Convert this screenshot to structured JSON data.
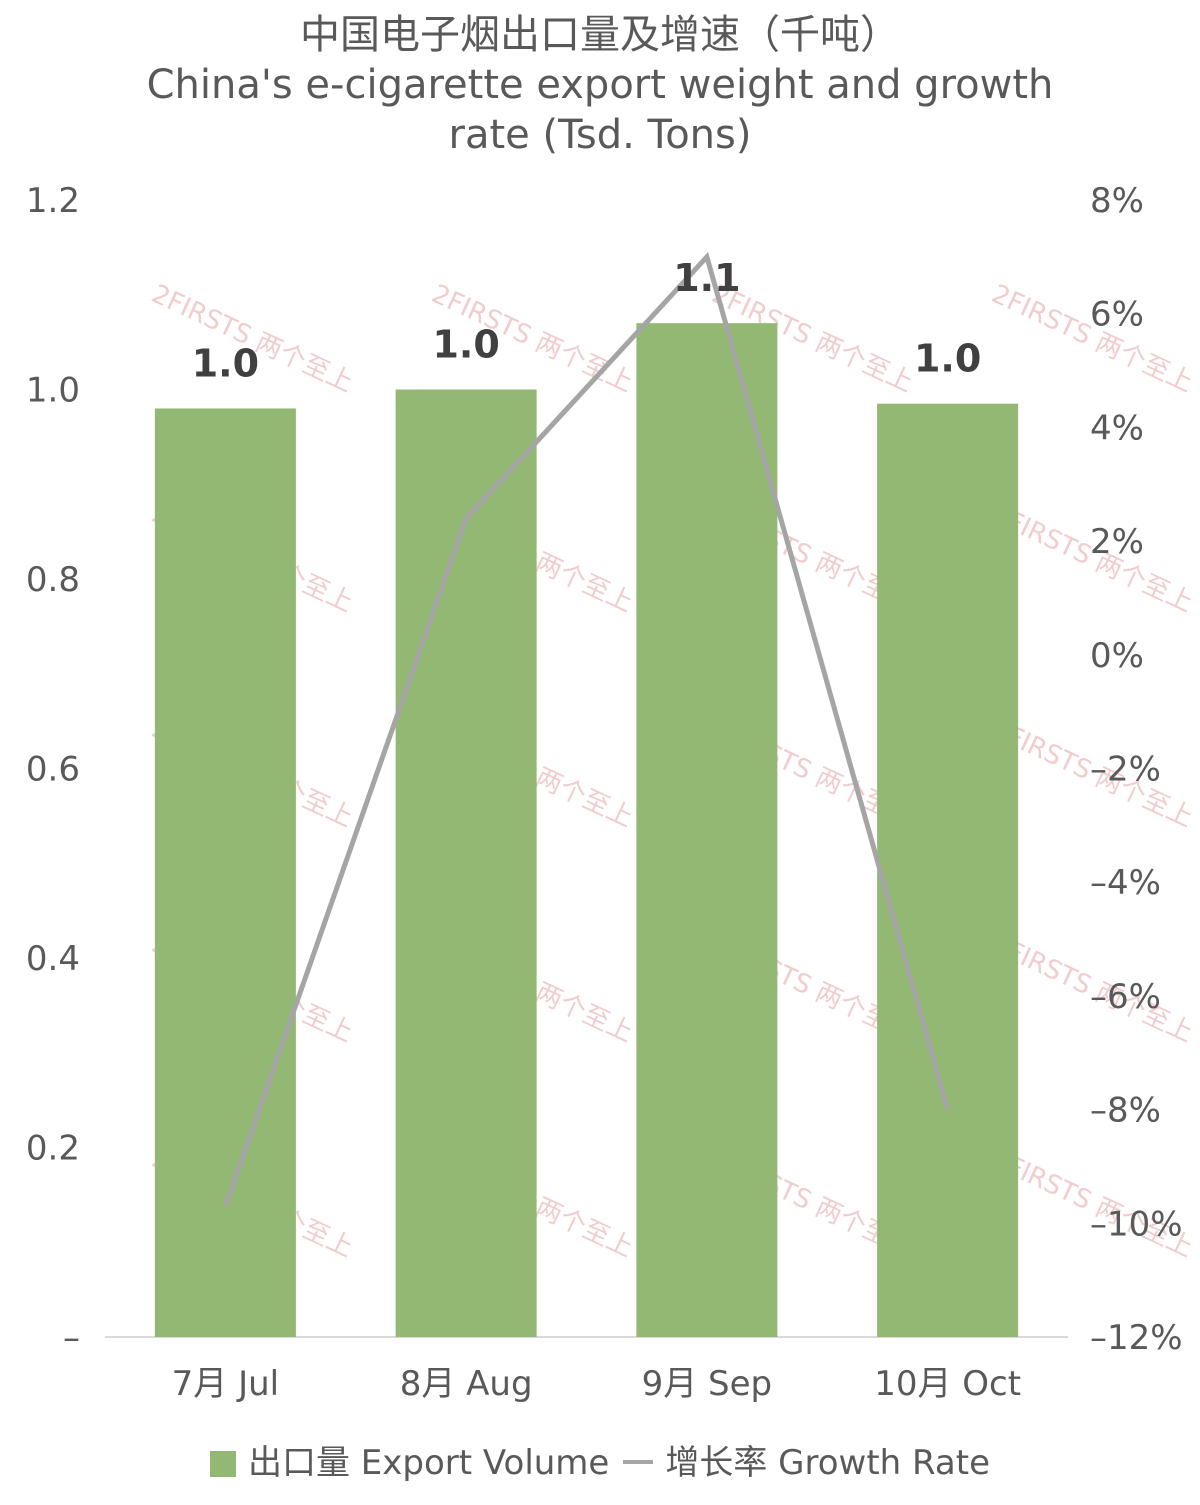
{
  "title": {
    "zh": "中国电子烟出口量及增速（千吨）",
    "en_line1": "China's e-cigarette export weight and growth",
    "en_line2": "rate (Tsd. Tons)"
  },
  "legend": {
    "bar_label": "出口量 Export Volume",
    "line_label": "增长率 Growth Rate"
  },
  "watermark": "2FIRSTS 两个至上",
  "colors": {
    "bar": "#93b874",
    "line": "#a5a5a5",
    "watermark": "#e6a4a4"
  },
  "chart_data": {
    "type": "bar",
    "categories": [
      "7月 Jul",
      "8月 Aug",
      "9月 Sep",
      "10月 Oct"
    ],
    "series": [
      {
        "name": "出口量 Export Volume",
        "type": "bar",
        "axis": "left",
        "values": [
          0.98,
          1.0,
          1.07,
          0.985
        ],
        "data_labels": [
          "1.0",
          "1.0",
          "1.1",
          "1.0"
        ]
      },
      {
        "name": "增长率 Growth Rate",
        "type": "line",
        "axis": "right",
        "values": [
          -9.7,
          2.4,
          7.0,
          -8.0
        ]
      }
    ],
    "y_left": {
      "ylim": [
        0,
        1.2
      ],
      "ticks": [
        "–",
        "0.2",
        "0.4",
        "0.6",
        "0.8",
        "1.0",
        "1.2"
      ]
    },
    "y_right": {
      "ylim": [
        -12,
        8
      ],
      "ticks": [
        "–12%",
        "–10%",
        "–8%",
        "–6%",
        "–4%",
        "–2%",
        "0%",
        "2%",
        "4%",
        "6%",
        "8%"
      ]
    },
    "grid": false,
    "legend_position": "bottom"
  }
}
